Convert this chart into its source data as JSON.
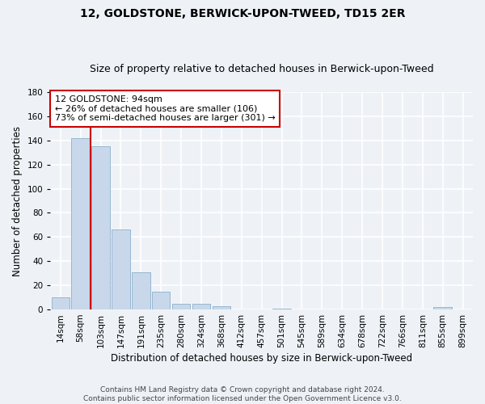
{
  "title": "12, GOLDSTONE, BERWICK-UPON-TWEED, TD15 2ER",
  "subtitle": "Size of property relative to detached houses in Berwick-upon-Tweed",
  "xlabel": "Distribution of detached houses by size in Berwick-upon-Tweed",
  "ylabel": "Number of detached properties",
  "footer_line1": "Contains HM Land Registry data © Crown copyright and database right 2024.",
  "footer_line2": "Contains public sector information licensed under the Open Government Licence v3.0.",
  "categories": [
    "14sqm",
    "58sqm",
    "103sqm",
    "147sqm",
    "191sqm",
    "235sqm",
    "280sqm",
    "324sqm",
    "368sqm",
    "412sqm",
    "457sqm",
    "501sqm",
    "545sqm",
    "589sqm",
    "634sqm",
    "678sqm",
    "722sqm",
    "766sqm",
    "811sqm",
    "855sqm",
    "899sqm"
  ],
  "values": [
    10,
    142,
    135,
    66,
    31,
    15,
    5,
    5,
    3,
    0,
    0,
    1,
    0,
    0,
    0,
    0,
    0,
    0,
    0,
    2,
    0
  ],
  "bar_color": "#c8d8ea",
  "bar_edge_color": "#8ab0cc",
  "vline_color": "#cc0000",
  "vline_x_idx": 2,
  "annotation_text": "12 GOLDSTONE: 94sqm\n← 26% of detached houses are smaller (106)\n73% of semi-detached houses are larger (301) →",
  "annotation_box_color": "#ffffff",
  "annotation_box_edge_color": "#cc0000",
  "ylim": [
    0,
    180
  ],
  "yticks": [
    0,
    20,
    40,
    60,
    80,
    100,
    120,
    140,
    160,
    180
  ],
  "background_color": "#eef2f7",
  "grid_color": "#ffffff",
  "title_fontsize": 10,
  "subtitle_fontsize": 9,
  "xlabel_fontsize": 8.5,
  "ylabel_fontsize": 8.5,
  "tick_fontsize": 7.5,
  "footer_fontsize": 6.5,
  "annotation_fontsize": 8
}
